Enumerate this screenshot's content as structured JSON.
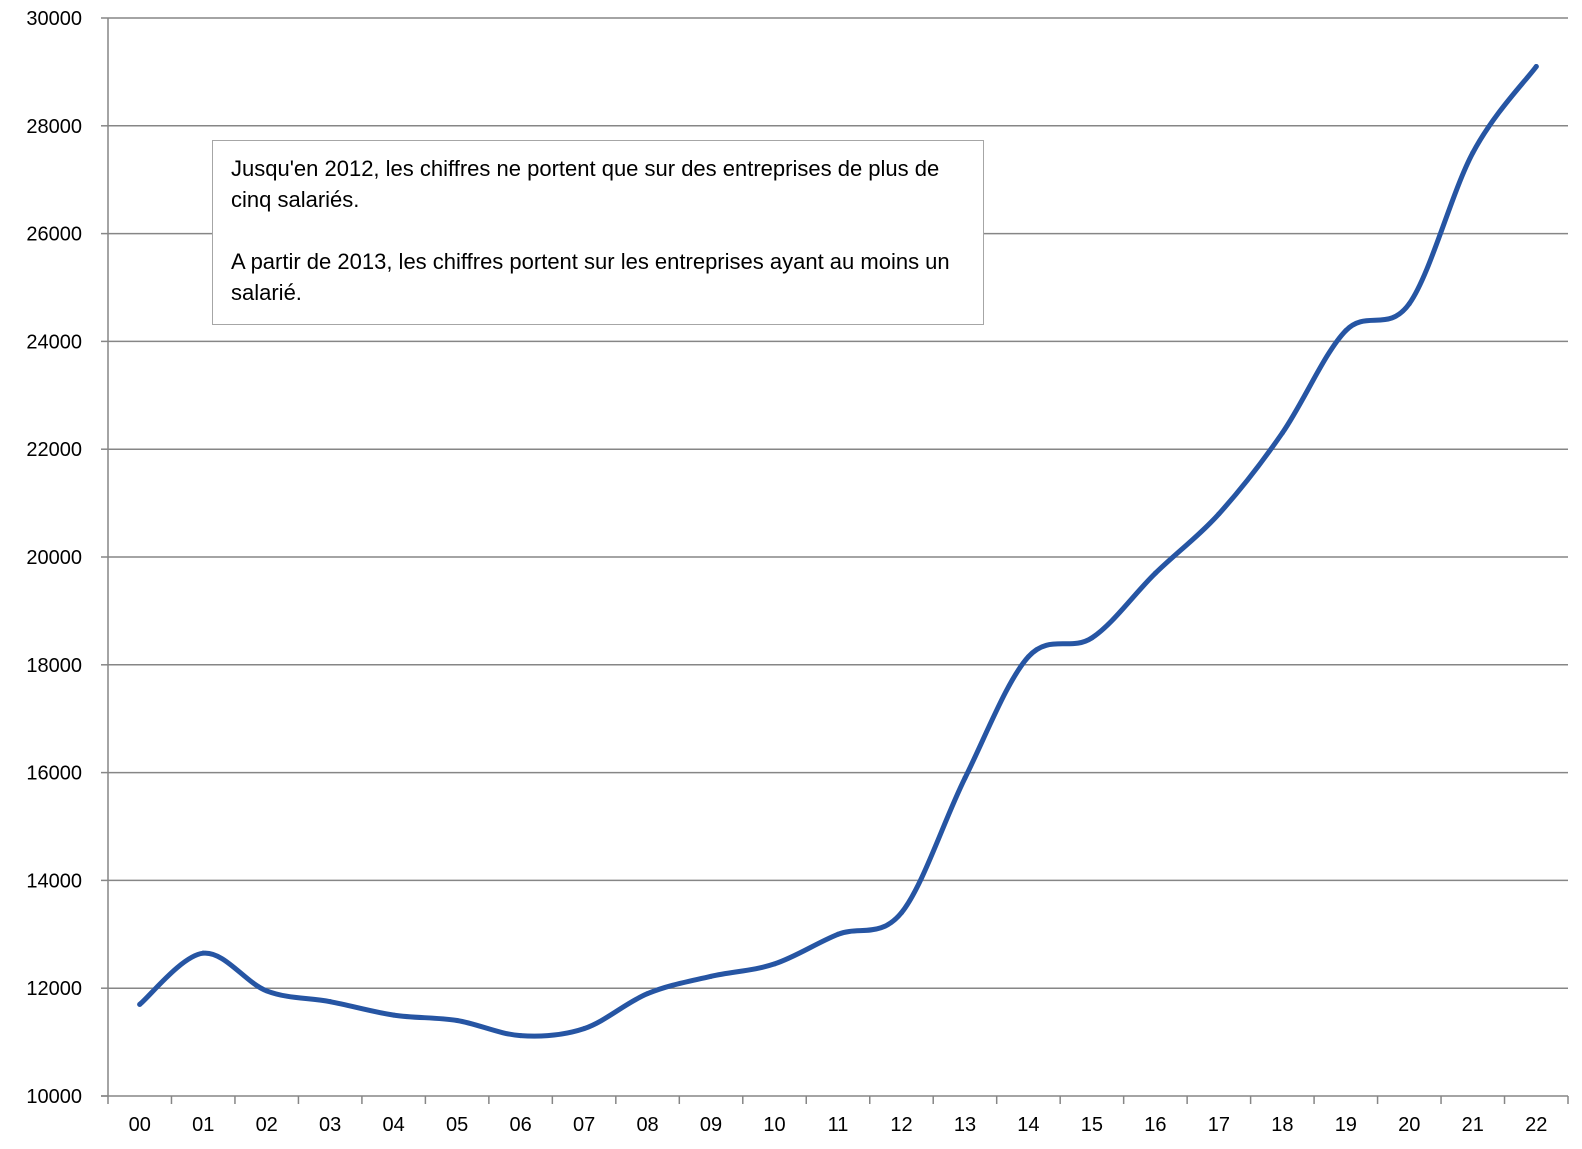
{
  "chart_data": {
    "type": "line",
    "title": "",
    "xlabel": "",
    "ylabel": "",
    "categories": [
      "00",
      "01",
      "02",
      "03",
      "04",
      "05",
      "06",
      "07",
      "08",
      "09",
      "10",
      "11",
      "12",
      "13",
      "14",
      "15",
      "16",
      "17",
      "18",
      "19",
      "20",
      "21",
      "22"
    ],
    "series": [
      {
        "values": [
          11700,
          12650,
          11950,
          11750,
          11500,
          11400,
          11120,
          11250,
          11900,
          12220,
          12450,
          13000,
          13400,
          15900,
          18150,
          18500,
          19700,
          20800,
          22300,
          24200,
          24700,
          27500,
          29100
        ],
        "color": "#2655a3"
      }
    ],
    "ylim": [
      10000,
      30000
    ],
    "yticks": [
      10000,
      12000,
      14000,
      16000,
      18000,
      20000,
      22000,
      24000,
      26000,
      28000,
      30000
    ],
    "grid": true,
    "legend": "none",
    "annotation": {
      "line1": "Jusqu'en 2012, les chiffres ne portent que sur des entreprises de plus de cinq salariés.",
      "line2": "A partir de 2013, les chiffres portent sur les entreprises ayant au moins un salarié."
    }
  }
}
